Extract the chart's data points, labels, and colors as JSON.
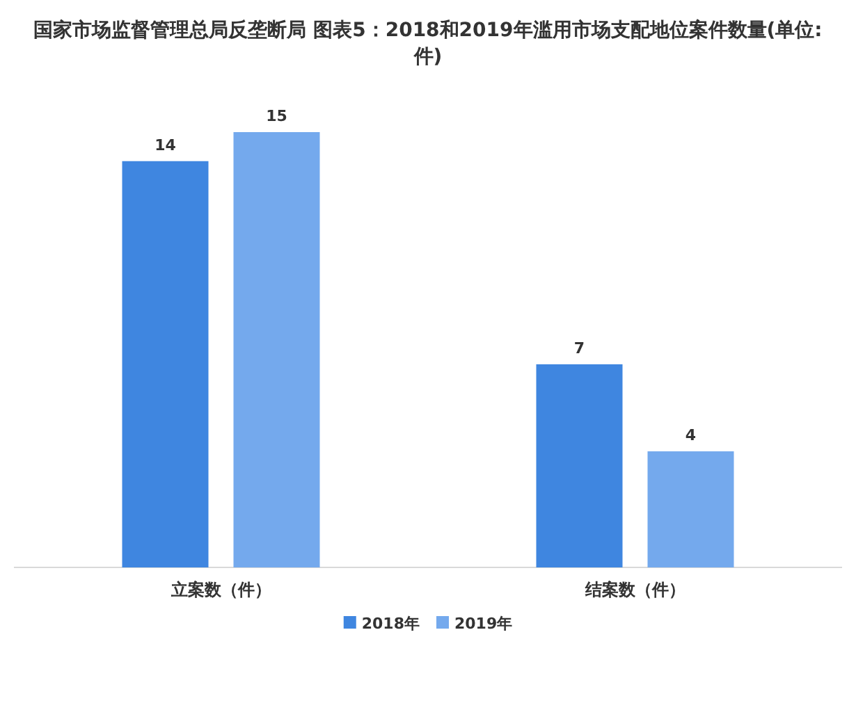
{
  "chart_data": {
    "type": "bar",
    "title": "国家市场监督管理总局反垄断局 图表5：2018和2019年滥用市场支配地位案件数量(单位:件)",
    "categories": [
      "立案数（件）",
      "结案数（件）"
    ],
    "series": [
      {
        "name": "2018年",
        "color": "#3f86e0",
        "values": [
          14,
          7
        ]
      },
      {
        "name": "2019年",
        "color": "#74a9ed",
        "values": [
          15,
          4
        ]
      }
    ],
    "data_labels": true,
    "legend": "bottom"
  }
}
